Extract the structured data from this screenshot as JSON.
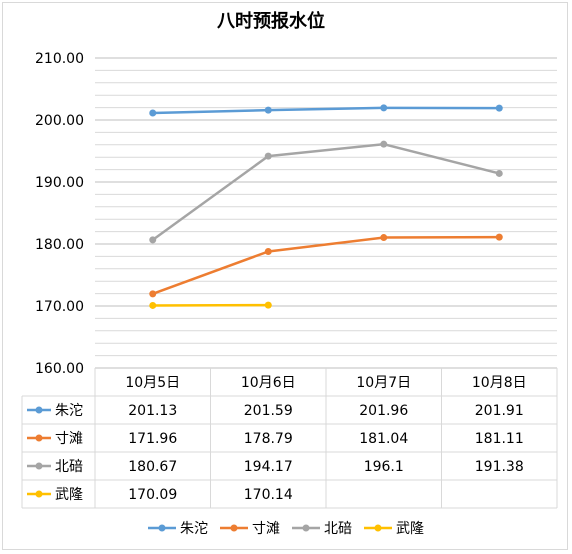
{
  "chart_data": {
    "type": "line",
    "title": "八时预报水位",
    "categories": [
      "10月5日",
      "10月6日",
      "10月7日",
      "10月8日"
    ],
    "ylim": [
      160,
      210
    ],
    "yticks": [
      "160.00",
      "170.00",
      "180.00",
      "190.00",
      "200.00",
      "210.00"
    ],
    "grid": true,
    "legend_position": "bottom",
    "data_table": true,
    "series": [
      {
        "name": "朱沱",
        "color": "#5b9bd5",
        "values": [
          201.13,
          201.59,
          201.96,
          201.91
        ],
        "labels": [
          "201.13",
          "201.59",
          "201.96",
          "201.91"
        ]
      },
      {
        "name": "寸滩",
        "color": "#ed7d31",
        "values": [
          171.96,
          178.79,
          181.04,
          181.11
        ],
        "labels": [
          "171.96",
          "178.79",
          "181.04",
          "181.11"
        ]
      },
      {
        "name": "北碚",
        "color": "#a5a5a5",
        "values": [
          180.67,
          194.17,
          196.1,
          191.38
        ],
        "labels": [
          "180.67",
          "194.17",
          "196.1",
          "191.38"
        ]
      },
      {
        "name": "武隆",
        "color": "#ffc000",
        "values": [
          170.09,
          170.14,
          null,
          null
        ],
        "labels": [
          "170.09",
          "170.14",
          "",
          ""
        ]
      }
    ]
  }
}
